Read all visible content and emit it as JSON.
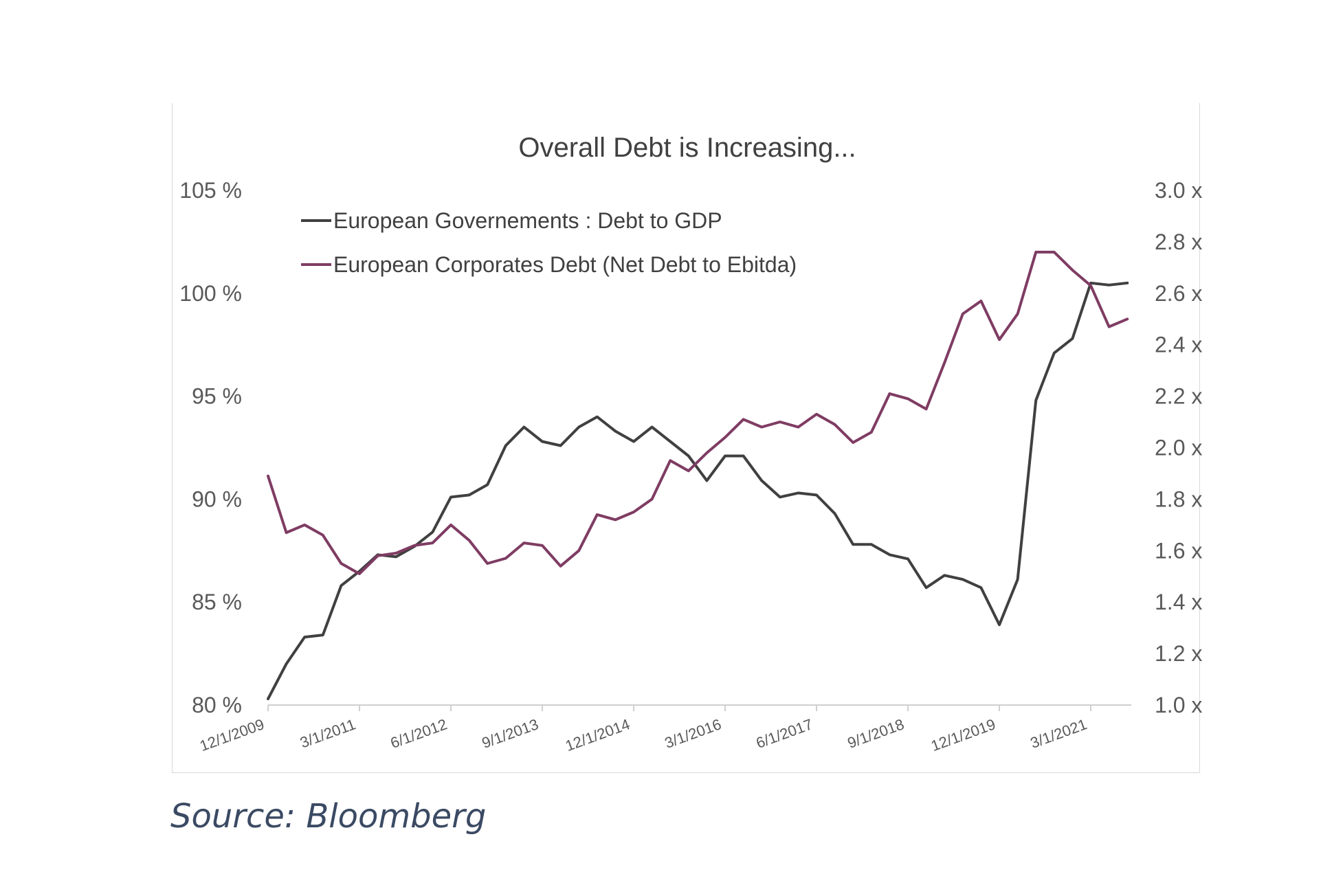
{
  "chart_data": {
    "type": "line",
    "title": "Overall Debt is Increasing...",
    "x_tick_labels": [
      "12/1/2009",
      "3/1/2011",
      "6/1/2012",
      "9/1/2013",
      "12/1/2014",
      "3/1/2016",
      "6/1/2017",
      "9/1/2018",
      "12/1/2019",
      "3/1/2021"
    ],
    "y_left": {
      "ticks": [
        80,
        85,
        90,
        95,
        100,
        105
      ],
      "tick_labels": [
        "80 %",
        "85 %",
        "90 %",
        "95 %",
        "100 %",
        "105 %"
      ],
      "range": [
        80,
        105
      ]
    },
    "y_right": {
      "ticks": [
        1.0,
        1.2,
        1.4,
        1.6,
        1.8,
        2.0,
        2.2,
        2.4,
        2.6,
        2.8,
        3.0
      ],
      "tick_labels": [
        "1.0 x",
        "1.2 x",
        "1.4 x",
        "1.6 x",
        "1.8 x",
        "2.0 x",
        "2.2 x",
        "2.4 x",
        "2.6 x",
        "2.8 x",
        "3.0 x"
      ],
      "range": [
        1.0,
        3.0
      ]
    },
    "legend_placement": "top-left",
    "grid": false,
    "x_start": "12/1/2009",
    "period_months": 3,
    "series": [
      {
        "name": "European Governements : Debt to GDP",
        "axis": "left",
        "color": "#404040",
        "values": [
          80.3,
          82.0,
          83.3,
          83.4,
          85.8,
          86.5,
          87.3,
          87.2,
          87.7,
          88.4,
          90.1,
          90.2,
          90.7,
          92.6,
          93.5,
          92.8,
          92.6,
          93.5,
          94.0,
          93.3,
          92.8,
          93.5,
          92.8,
          92.1,
          90.9,
          92.1,
          92.1,
          90.9,
          90.1,
          90.3,
          90.2,
          89.3,
          87.8,
          87.8,
          87.3,
          87.1,
          85.7,
          86.3,
          86.1,
          85.7,
          83.9,
          86.1,
          94.8,
          97.1,
          97.8,
          100.5,
          100.4,
          100.5
        ]
      },
      {
        "name": "European Corporates  Debt (Net Debt to Ebitda)",
        "axis": "right",
        "color": "#7f3c63",
        "values": [
          1.89,
          1.67,
          1.7,
          1.66,
          1.55,
          1.51,
          1.58,
          1.59,
          1.62,
          1.63,
          1.7,
          1.64,
          1.55,
          1.57,
          1.63,
          1.62,
          1.54,
          1.6,
          1.74,
          1.72,
          1.75,
          1.8,
          1.95,
          1.91,
          1.98,
          2.04,
          2.11,
          2.08,
          2.1,
          2.08,
          2.13,
          2.09,
          2.02,
          2.06,
          2.21,
          2.19,
          2.15,
          2.33,
          2.52,
          2.57,
          2.42,
          2.52,
          2.76,
          2.76,
          2.69,
          2.63,
          2.47,
          2.5
        ]
      }
    ]
  },
  "source": "Source: Bloomberg"
}
